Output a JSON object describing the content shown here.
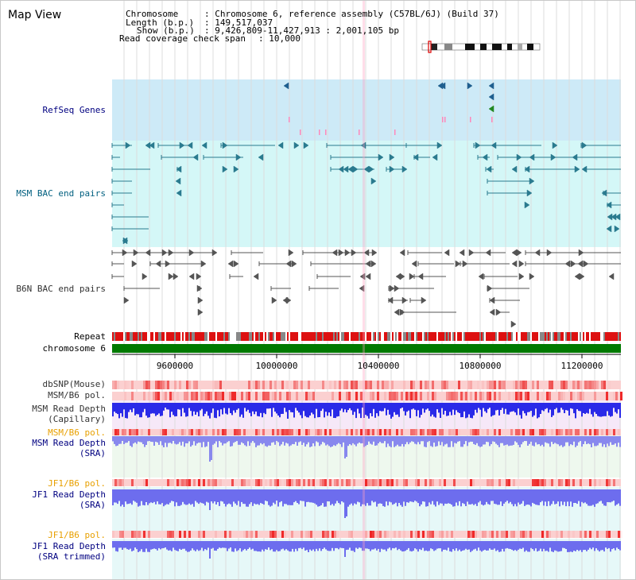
{
  "view_title": "Map View",
  "header": {
    "chromosome_key": "Chromosome",
    "chromosome_value": ": Chromosome 6, reference assembly (C57BL/6J) (Build 37)",
    "length_key": "Length (b.p.)",
    "length_value": ": 149,517,037",
    "show_key": "Show (b.p.)",
    "show_value": ": 9,426,809-11,427,913 : 2,001,105 bp",
    "coverage_key": "Read coverage check span",
    "coverage_value": ": 10,000"
  },
  "tracks": {
    "refseq": "RefSeq Genes",
    "msm_bac": "MSM BAC end pairs",
    "b6n_bac": "B6N BAC end pairs",
    "repeat": "Repeat",
    "chromosome": "chromosome 6",
    "dbsnp": "dbSNP(Mouse)",
    "msm_b6_pol_1": "MSM/B6 pol.",
    "msm_depth_cap_1": "MSM Read Depth",
    "msm_depth_cap_2": "(Capillary)",
    "msm_b6_pol_2": "MSM/B6 pol.",
    "msm_depth_sra_1": "MSM Read Depth",
    "msm_depth_sra_2": "(SRA)",
    "jf1_b6_pol_1": "JF1/B6 pol.",
    "jf1_depth_sra_1": "JF1 Read Depth",
    "jf1_depth_sra_2": "(SRA)",
    "jf1_b6_pol_2": "JF1/B6 pol.",
    "jf1_depth_trim_1": "JF1 Read Depth",
    "jf1_depth_trim_2": "(SRA trimmed)"
  },
  "ruler": {
    "tick_9600000": "9600000",
    "tick_10000000": "10000000",
    "tick_10400000": "10400000",
    "tick_10800000": "10800000",
    "tick_11200000": "11200000"
  },
  "colors": {
    "refseq_bg": "#cdeaf7",
    "msm_bg": "#d4f7f7",
    "chromosome": "#007a00",
    "repeat": "#e00000",
    "navy_label": "#000080",
    "teal_label": "#005f7f",
    "orange_label": "#e8a000",
    "depth_dark": "#2222ee",
    "depth_light": "#7777ee"
  }
}
